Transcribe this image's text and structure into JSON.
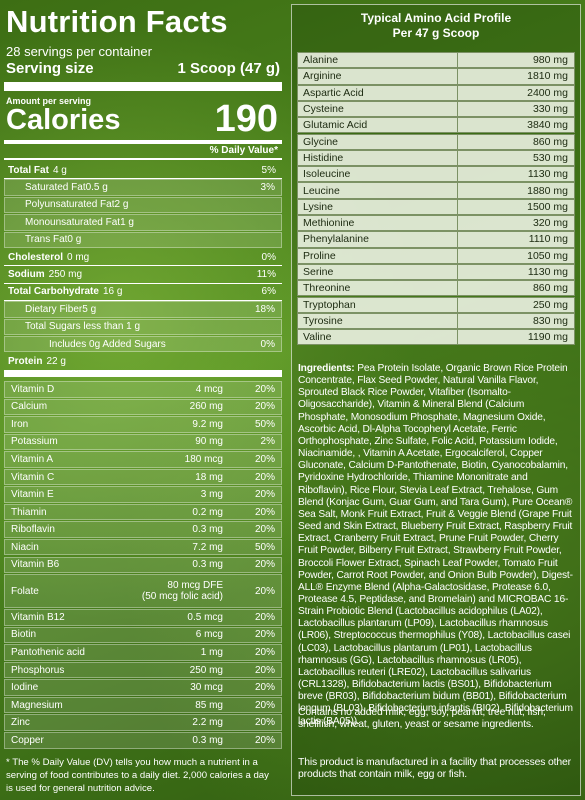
{
  "header": {
    "title": "Nutrition Facts",
    "servings": "28 servings per container",
    "serving_size_label": "Serving size",
    "serving_size": "1 Scoop (47 g)"
  },
  "calories": {
    "amount_label": "Amount per serving",
    "label": "Calories",
    "value": "190"
  },
  "dv_header": "% Daily Value*",
  "nutrients": [
    {
      "name": "Total Fat",
      "amount": "4 g",
      "dv": "5%",
      "sub": [
        {
          "name": "Saturated Fat",
          "amount": "0.5 g",
          "dv": "3%"
        },
        {
          "name": "Polyunsaturated Fat",
          "amount": "2 g"
        },
        {
          "name": "Monounsaturated Fat",
          "amount": "1 g"
        },
        {
          "name": "Trans Fat",
          "amount": "0 g"
        }
      ]
    },
    {
      "name": "Cholesterol",
      "amount": "0 mg",
      "dv": "0%"
    },
    {
      "name": "Sodium",
      "amount": "250 mg",
      "dv": "11%"
    },
    {
      "name": "Total Carbohydrate",
      "amount": "16 g",
      "dv": "6%",
      "sub": [
        {
          "name": "Dietary Fiber",
          "amount": "5 g",
          "dv": "18%"
        },
        {
          "name": "Total Sugars less than 1 g",
          "sub": [
            {
              "name": "Includes 0g Added Sugars",
              "dv": "0%"
            }
          ]
        }
      ]
    },
    {
      "name": "Protein",
      "amount": "22 g"
    }
  ],
  "vitamins": [
    {
      "name": "Vitamin D",
      "amount": "4 mcg",
      "dv": "20%"
    },
    {
      "name": "Calcium",
      "amount": "260 mg",
      "dv": "20%"
    },
    {
      "name": "Iron",
      "amount": "9.2 mg",
      "dv": "50%"
    },
    {
      "name": "Potassium",
      "amount": "90 mg",
      "dv": "2%"
    },
    {
      "name": "Vitamin A",
      "amount": "180 mcg",
      "dv": "20%"
    },
    {
      "name": "Vitamin C",
      "amount": "18 mg",
      "dv": "20%"
    },
    {
      "name": "Vitamin E",
      "amount": "3 mg",
      "dv": "20%"
    },
    {
      "name": "Thiamin",
      "amount": "0.2 mg",
      "dv": "20%"
    },
    {
      "name": "Riboflavin",
      "amount": "0.3 mg",
      "dv": "20%"
    },
    {
      "name": "Niacin",
      "amount": "7.2 mg",
      "dv": "50%"
    },
    {
      "name": "Vitamin B6",
      "amount": "0.3 mg",
      "dv": "20%"
    },
    {
      "name": "Folate",
      "amount": "80 mcg DFE",
      "amount_note": "(50 mcg folic acid)",
      "dv": "20%"
    },
    {
      "name": "Vitamin B12",
      "amount": "0.5 mcg",
      "dv": "20%"
    },
    {
      "name": "Biotin",
      "amount": "6 mcg",
      "dv": "20%"
    },
    {
      "name": "Pantothenic acid",
      "amount": "1 mg",
      "dv": "20%"
    },
    {
      "name": "Phosphorus",
      "amount": "250 mg",
      "dv": "20%"
    },
    {
      "name": "Iodine",
      "amount": "30 mcg",
      "dv": "20%"
    },
    {
      "name": "Magnesium",
      "amount": "85 mg",
      "dv": "20%"
    },
    {
      "name": "Zinc",
      "amount": "2.2 mg",
      "dv": "20%"
    },
    {
      "name": "Copper",
      "amount": "0.3 mg",
      "dv": "20%"
    }
  ],
  "footnote": "* The % Daily Value (DV) tells you how much a nutrient in a serving of food contributes to a daily diet. 2,000 calories a day is used for general nutrition advice.",
  "amino": {
    "title": "Typical Amino Acid Profile",
    "subtitle": "Per 47 g Scoop",
    "rows": [
      [
        "Alanine",
        "980 mg"
      ],
      [
        "Arginine",
        "1810 mg"
      ],
      [
        "Aspartic Acid",
        "2400 mg"
      ],
      [
        "Cysteine",
        "330 mg"
      ],
      [
        "Glutamic Acid",
        "3840 mg"
      ],
      [
        "Glycine",
        "860 mg"
      ],
      [
        "Histidine",
        "530 mg"
      ],
      [
        "Isoleucine",
        "1130 mg"
      ],
      [
        "Leucine",
        "1880 mg"
      ],
      [
        "Lysine",
        "1500 mg"
      ],
      [
        "Methionine",
        "320 mg"
      ],
      [
        "Phenylalanine",
        "1110 mg"
      ],
      [
        "Proline",
        "1050 mg"
      ],
      [
        "Serine",
        "1130 mg"
      ],
      [
        "Threonine",
        "860 mg"
      ],
      [
        "Tryptophan",
        "250 mg"
      ],
      [
        "Tyrosine",
        "830 mg"
      ],
      [
        "Valine",
        "1190 mg"
      ]
    ]
  },
  "ingredients": {
    "label": "Ingredients:",
    "text": "Pea Protein Isolate, Organic Brown Rice Protein Concentrate, Flax Seed Powder, Natural Vanilla Flavor, Sprouted Black Rice Powder, Vitafiber (Isomalto-Oligosaccharide), Vitamin & Mineral Blend (Calcium Phosphate, Monosodium Phosphate, Magnesium Oxide, Ascorbic Acid, Dl-Alpha Tocopheryl Acetate, Ferric Orthophosphate, Zinc Sulfate, Folic Acid, Potassium Iodide, Niacinamide, , Vitamin A Acetate, Ergocalciferol, Copper Gluconate, Calcium D-Pantothenate, Biotin, Cyanocobalamin, Pyridoxine Hydrochloride, Thiamine Mononitrate and Riboflavin), Rice Flour, Stevia Leaf Extract, Trehalose, Gum Blend (Konjac Gum, Guar Gum, and Tara Gum), Pure Ocean® Sea Salt, Monk Fruit Extract, Fruit & Veggie Blend (Grape Fruit Seed and Skin Extract, Blueberry Fruit Extract, Raspberry Fruit Extract, Cranberry Fruit Extract, Prune Fruit Powder, Cherry Fruit Powder, Bilberry Fruit Extract, Strawberry Fruit Powder, Broccoli Flower Extract, Spinach Leaf Powder, Tomato Fruit Powder, Carrot Root Powder, and Onion Bulb Powder), Digest-ALL® Enzyme Blend (Alpha-Galactosidase, Protease 6.0, Protease 4.5, Peptidase, and Bromelain) and MICROBAC 16-Strain Probiotic Blend (Lactobacillus acidophilus (LA02), Lactobacillus plantarum (LP09), Lactobacillus rhamnosus (LR06), Streptococcus thermophilus (Y08), Lactobacillus casei (LC03), Lactobacillus plantarum (LP01), Lactobacillus rhamnosus (GG), Lactobacillus rhamnosus (LR05), Lactobacillus reuteri (LRE02), Lactobacillus salivarius (CRL1328), Bifidobacterium lactis (BS01), Bifidobacterium breve (BR03), Bifidobacterium bidum (BB01), Bifidobacterium longum (BL03), Bifidobacterium infantis (BI02), Bifidobacterium lactis (BA05))."
  },
  "notes": [
    "Contains no added milk, egg, soy, peanut, tree nut, fish, shellfish, wheat, gluten, yeast or sesame ingredients.",
    "This product is manufactured in a facility that processes other products that contain milk, egg or fish."
  ]
}
